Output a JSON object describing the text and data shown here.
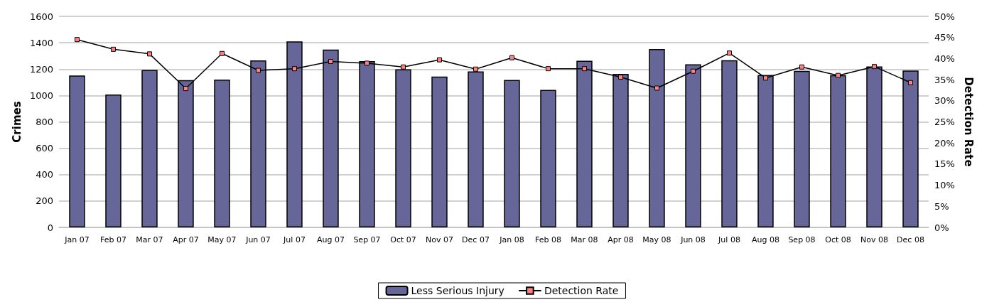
{
  "chart_data": {
    "type": "bar",
    "ylabel": "Crimes",
    "y2label": "Detection Rate",
    "categories": [
      "Jan 07",
      "Feb 07",
      "Mar 07",
      "Apr 07",
      "May 07",
      "Jun 07",
      "Jul 07",
      "Aug 07",
      "Sep 07",
      "Oct 07",
      "Nov 07",
      "Dec 07",
      "Jan 08",
      "Feb 08",
      "Mar 08",
      "Apr 08",
      "May 08",
      "Jun 08",
      "Jul 08",
      "Aug 08",
      "Sep 08",
      "Oct 08",
      "Nov 08",
      "Dec 08"
    ],
    "series": [
      {
        "name": "Less Serious Injury",
        "color": "#666699",
        "values": [
          1152,
          1007,
          1193,
          1116,
          1121,
          1266,
          1410,
          1348,
          1260,
          1198,
          1143,
          1183,
          1118,
          1043,
          1263,
          1164,
          1352,
          1237,
          1268,
          1155,
          1186,
          1154,
          1220,
          1189
        ]
      },
      {
        "name": "Detection Rate",
        "type": "line",
        "axis": "y2",
        "color": "#000000",
        "values": [
          44.5,
          42.2,
          41.1,
          32.9,
          41.2,
          37.2,
          37.6,
          39.3,
          38.9,
          38.0,
          39.7,
          37.5,
          40.2,
          37.6,
          37.6,
          35.6,
          33.0,
          37.0,
          41.3,
          35.4,
          38.0,
          36.0,
          38.1,
          34.3
        ]
      }
    ],
    "ylim": [
      0,
      1600
    ],
    "yticks": [
      0,
      200,
      400,
      600,
      800,
      1000,
      1200,
      1400,
      1600
    ],
    "y2lim": [
      0,
      50
    ],
    "y2ticks": [
      {
        "value": 0,
        "label": "0%"
      },
      {
        "value": 5,
        "label": "5%"
      },
      {
        "value": 10,
        "label": "10%"
      },
      {
        "value": 15,
        "label": "15%"
      },
      {
        "value": 20,
        "label": "20%"
      },
      {
        "value": 25,
        "label": "25%"
      },
      {
        "value": 30,
        "label": "30%"
      },
      {
        "value": 35,
        "label": "35%"
      },
      {
        "value": 40,
        "label": "40%"
      },
      {
        "value": 45,
        "label": "45%"
      },
      {
        "value": 50,
        "label": "50%"
      }
    ],
    "grid": "y",
    "legend": "bottom",
    "marker": "square"
  }
}
